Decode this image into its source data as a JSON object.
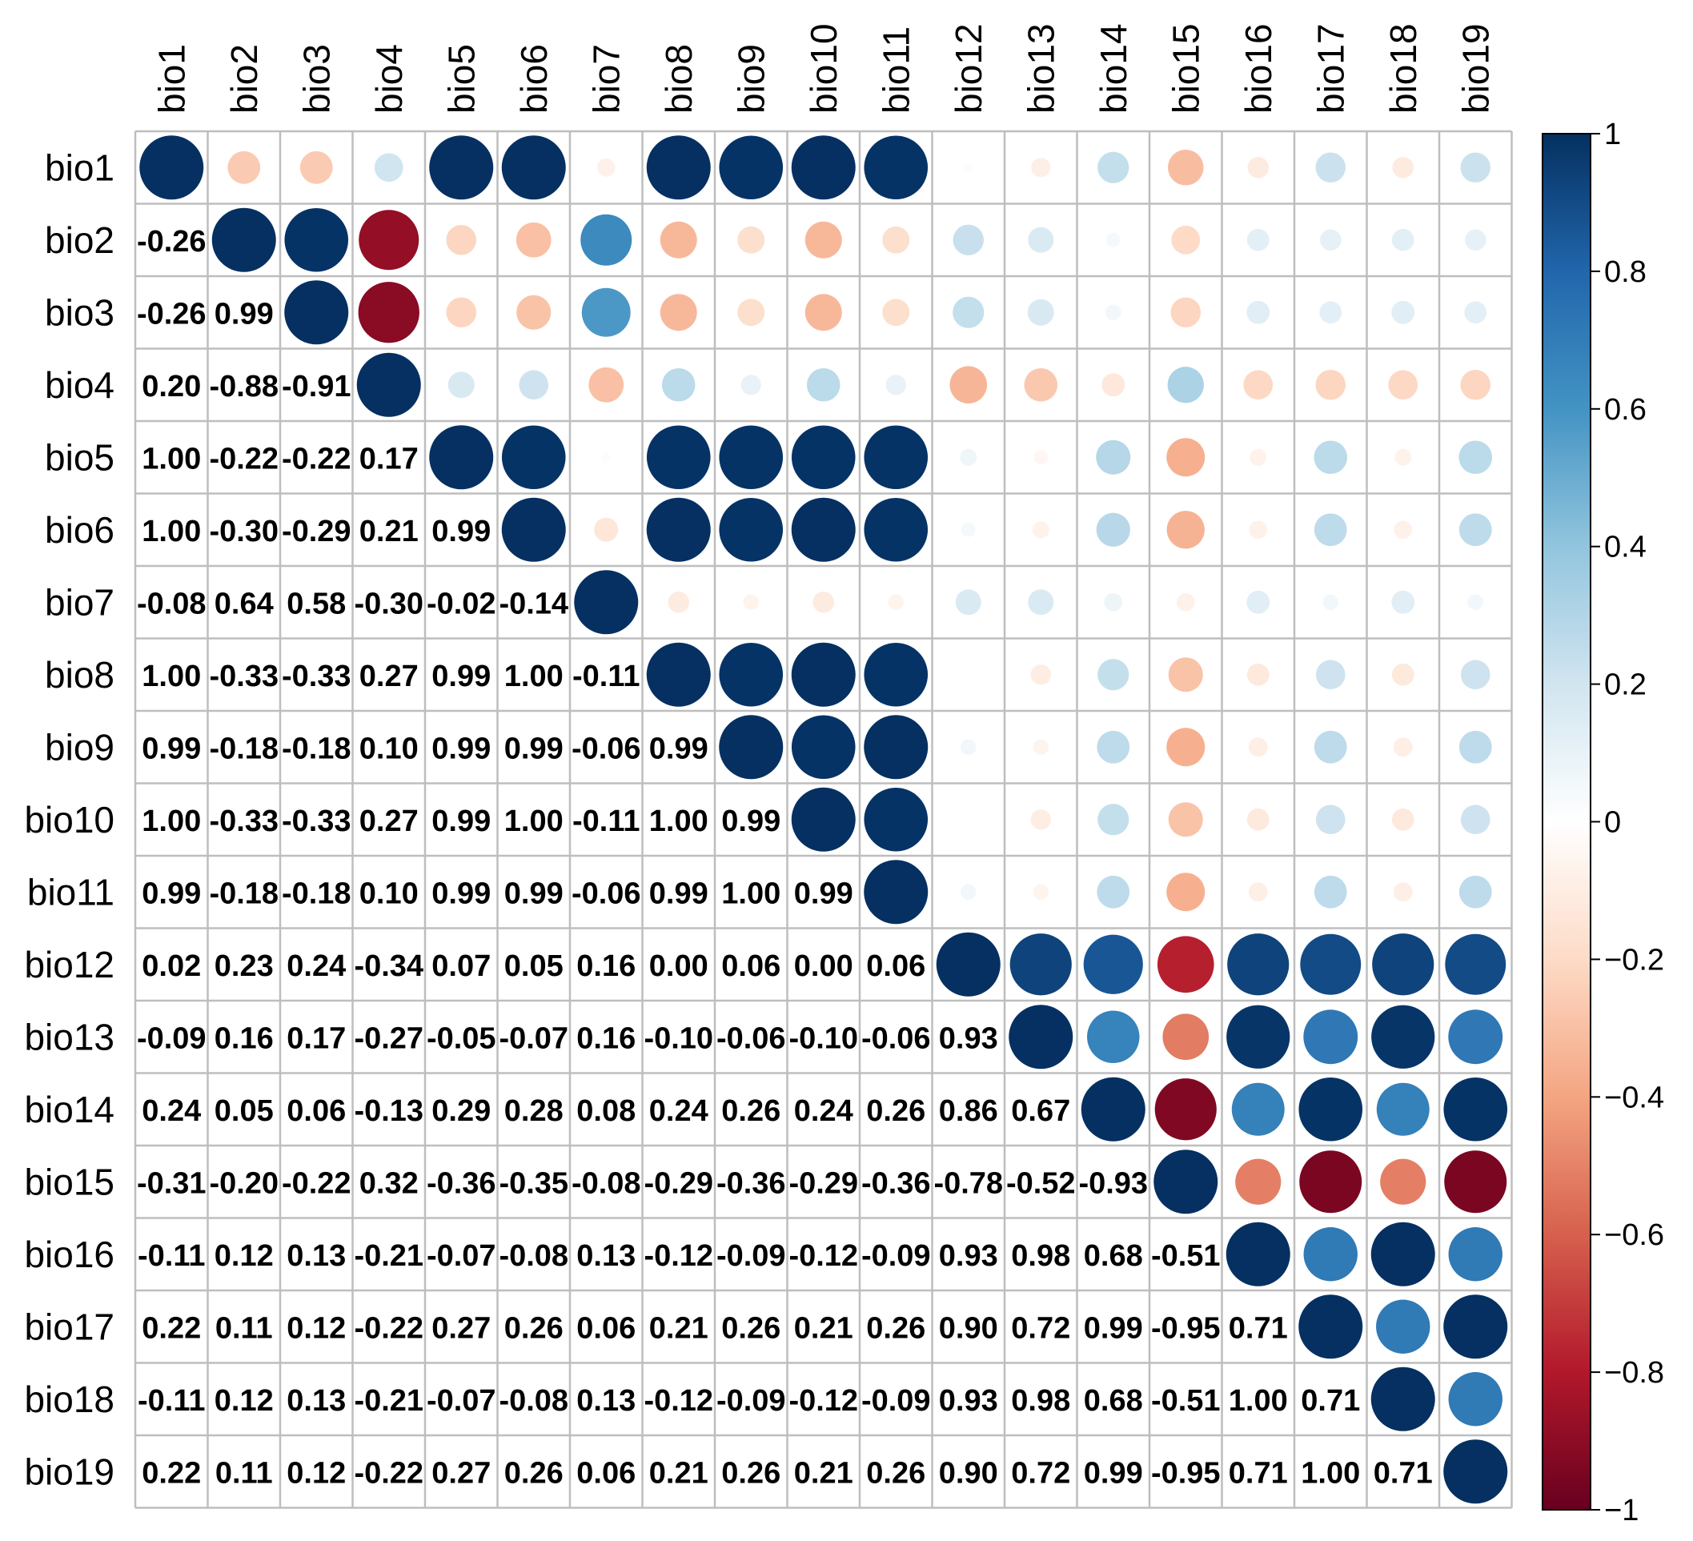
{
  "chart_data": {
    "type": "heatmap",
    "variables": [
      "bio1",
      "bio2",
      "bio3",
      "bio4",
      "bio5",
      "bio6",
      "bio7",
      "bio8",
      "bio9",
      "bio10",
      "bio11",
      "bio12",
      "bio13",
      "bio14",
      "bio15",
      "bio16",
      "bio17",
      "bio18",
      "bio19"
    ],
    "lower_labels": [
      [],
      [
        "-0.26"
      ],
      [
        "-0.26",
        "0.99"
      ],
      [
        "0.20",
        "-0.88",
        "-0.91"
      ],
      [
        "1.00",
        "-0.22",
        "-0.22",
        "0.17"
      ],
      [
        "1.00",
        "-0.30",
        "-0.29",
        "0.21",
        "0.99"
      ],
      [
        "-0.08",
        "0.64",
        "0.58",
        "-0.30",
        "-0.02",
        "-0.14"
      ],
      [
        "1.00",
        "-0.33",
        "-0.33",
        "0.27",
        "0.99",
        "1.00",
        "-0.11"
      ],
      [
        "0.99",
        "-0.18",
        "-0.18",
        "0.10",
        "0.99",
        "0.99",
        "-0.06",
        "0.99"
      ],
      [
        "1.00",
        "-0.33",
        "-0.33",
        "0.27",
        "0.99",
        "1.00",
        "-0.11",
        "1.00",
        "0.99"
      ],
      [
        "0.99",
        "-0.18",
        "-0.18",
        "0.10",
        "0.99",
        "0.99",
        "-0.06",
        "0.99",
        "1.00",
        "0.99"
      ],
      [
        "0.02",
        "0.23",
        "0.24",
        "-0.34",
        "0.07",
        "0.05",
        "0.16",
        "0.00",
        "0.06",
        "0.00",
        "0.06"
      ],
      [
        "-0.09",
        "0.16",
        "0.17",
        "-0.27",
        "-0.05",
        "-0.07",
        "0.16",
        "-0.10",
        "-0.06",
        "-0.10",
        "-0.06",
        "0.93"
      ],
      [
        "0.24",
        "0.05",
        "0.06",
        "-0.13",
        "0.29",
        "0.28",
        "0.08",
        "0.24",
        "0.26",
        "0.24",
        "0.26",
        "0.86",
        "0.67"
      ],
      [
        "-0.31",
        "-0.20",
        "-0.22",
        "0.32",
        "-0.36",
        "-0.35",
        "-0.08",
        "-0.29",
        "-0.36",
        "-0.29",
        "-0.36",
        "-0.78",
        "-0.52",
        "-0.93"
      ],
      [
        "-0.11",
        "0.12",
        "0.13",
        "-0.21",
        "-0.07",
        "-0.08",
        "0.13",
        "-0.12",
        "-0.09",
        "-0.12",
        "-0.09",
        "0.93",
        "0.98",
        "0.68",
        "-0.51"
      ],
      [
        "0.22",
        "0.11",
        "0.12",
        "-0.22",
        "0.27",
        "0.26",
        "0.06",
        "0.21",
        "0.26",
        "0.21",
        "0.26",
        "0.90",
        "0.72",
        "0.99",
        "-0.95",
        "0.71"
      ],
      [
        "-0.11",
        "0.12",
        "0.13",
        "-0.21",
        "-0.07",
        "-0.08",
        "0.13",
        "-0.12",
        "-0.09",
        "-0.12",
        "-0.09",
        "0.93",
        "0.98",
        "0.68",
        "-0.51",
        "1.00",
        "0.71"
      ],
      [
        "0.22",
        "0.11",
        "0.12",
        "-0.22",
        "0.27",
        "0.26",
        "0.06",
        "0.21",
        "0.26",
        "0.21",
        "0.26",
        "0.90",
        "0.72",
        "0.99",
        "-0.95",
        "0.71",
        "1.00",
        "0.71"
      ]
    ],
    "value_range": [
      -1,
      1
    ],
    "colorbar_ticks": [
      "1",
      "0.8",
      "0.6",
      "0.4",
      "0.2",
      "0",
      "−0.2",
      "−0.4",
      "−0.6",
      "−0.8",
      "−1"
    ],
    "colorbar_tick_values": [
      1,
      0.8,
      0.6,
      0.4,
      0.2,
      0,
      -0.2,
      -0.4,
      -0.6,
      -0.8,
      -1
    ],
    "colormap": [
      "#67001F",
      "#B2182B",
      "#D6604D",
      "#F4A582",
      "#FDDBC7",
      "#FFFFFF",
      "#D1E5F0",
      "#92C5DE",
      "#4393C3",
      "#2166AC",
      "#053061"
    ],
    "grid": true,
    "legend_placement": "right"
  }
}
